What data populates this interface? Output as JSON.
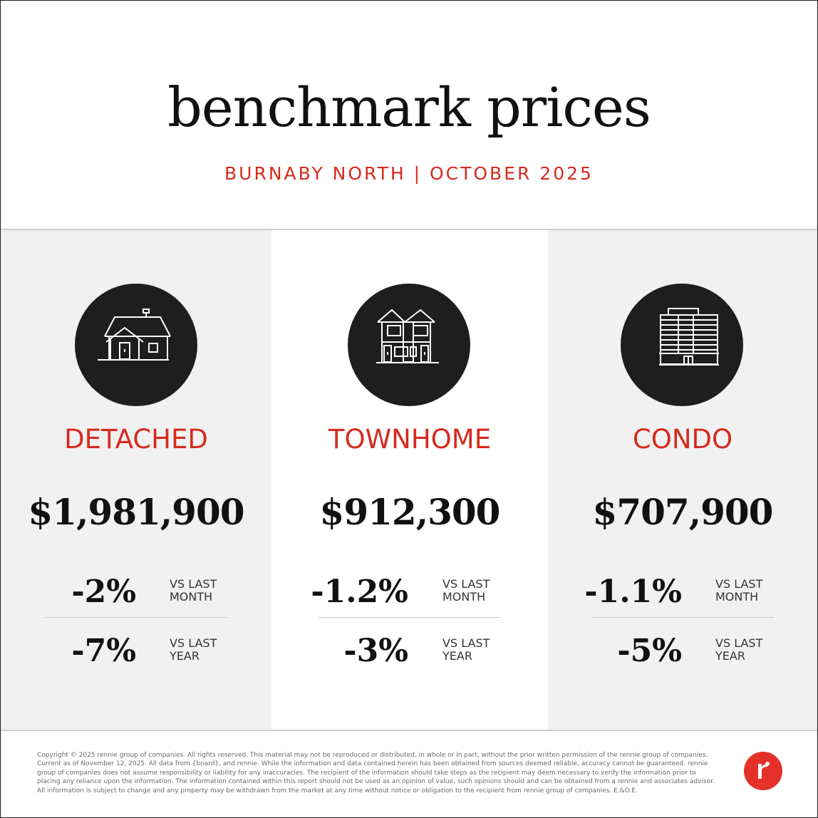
{
  "header": {
    "title": "benchmark prices",
    "subtitle": "BURNABY NORTH | OCTOBER 2025"
  },
  "colors": {
    "accent": "#d52b1e",
    "icon_circle": "#1e1e1e",
    "panel_gray": "#f1f1f1",
    "logo": "#e3312a"
  },
  "panels": [
    {
      "icon": "detached-house-icon",
      "type": "DETACHED",
      "price": "$1,981,900",
      "month_change": "-2%",
      "month_label": "VS LAST\nMONTH",
      "year_change": "-7%",
      "year_label": "VS LAST\nYEAR"
    },
    {
      "icon": "townhome-icon",
      "type": "TOWNHOME",
      "price": "$912,300",
      "month_change": "-1.2%",
      "month_label": "VS LAST\nMONTH",
      "year_change": "-3%",
      "year_label": "VS LAST\nYEAR"
    },
    {
      "icon": "condo-building-icon",
      "type": "CONDO",
      "price": "$707,900",
      "month_change": "-1.1%",
      "month_label": "VS LAST\nMONTH",
      "year_change": "-5%",
      "year_label": "VS LAST\nYEAR"
    }
  ],
  "footer": {
    "disclaimer": "Copyright © 2025 rennie group of companies. All rights reserved. This material may not be reproduced or distributed, in whole or in part, without the prior written permission of the rennie group of companies. Current as of November 12, 2025. All data from {board}, and rennie. While the information and data contained herein has been obtained from sources deemed reliable, accuracy cannot be guaranteed. rennie group of companies does not assume responsibility or liability for any inaccuracies. The recipient of the information should take steps as the recipient may deem necessary to verify the information prior to placing any reliance upon the information. The information contained within this report should not be used as an opinion of value, such opinions should and can be obtained from a rennie and associates advisor. All information is subject to change and any property may be withdrawn from the market at any time without notice or obligation to the recipient from rennie group of companies. E.&O.E.",
    "logo": "rennie-logo"
  }
}
